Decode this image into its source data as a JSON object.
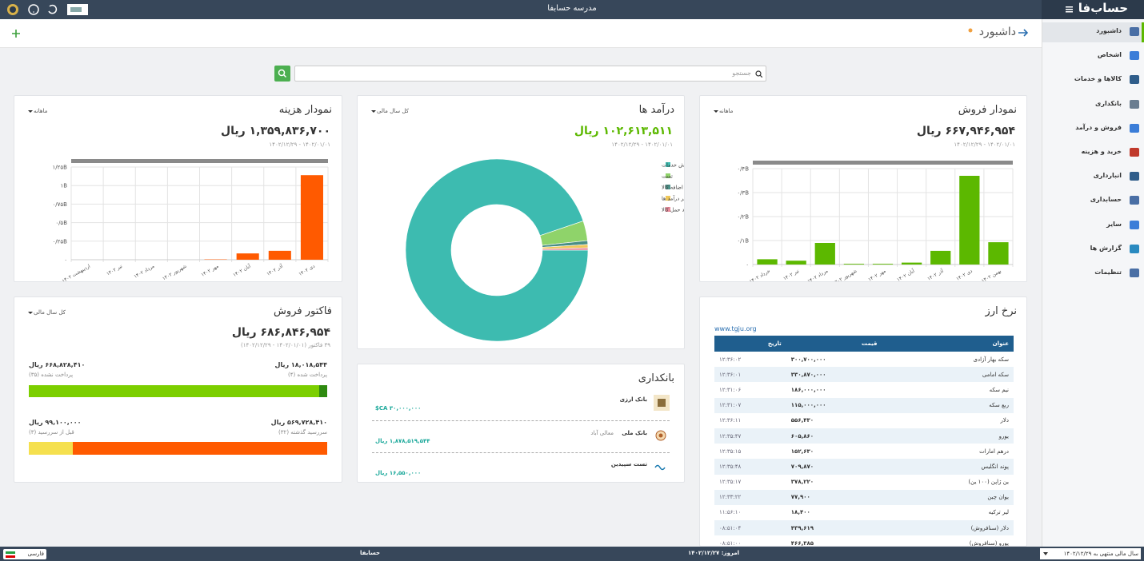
{
  "topbar": {
    "title": "مدرسه حسابفا",
    "logo": "حساب‌فا"
  },
  "sidebar": {
    "items": [
      "داشبورد",
      "اشخاص",
      "کالاها و خدمات",
      "بانکداری",
      "فروش و درآمد",
      "خرید و هزینه",
      "انبارداری",
      "حسابداری",
      "سایر",
      "گزارش ها",
      "تنظیمات"
    ]
  },
  "header": {
    "title": "داشبورد"
  },
  "search": {
    "placeholder": "جستجو"
  },
  "chart_data": [
    {
      "type": "bar",
      "title": "نمودار فروش",
      "period": "ماهانه",
      "amount": "۶۶۷,۹۴۶,۹۵۴ ریال",
      "date_range": "۱۴۰۲/۰۱/۰۱ - ۱۴۰۲/۱۲/۲۹",
      "color": "#5cb800",
      "categories": [
        "خرداد ۱۴۰۲",
        "تیر ۱۴۰۲",
        "مرداد ۱۴۰۲",
        "شهریور ۱۴۰۲",
        "مهر ۱۴۰۲",
        "آبان ۱۴۰۲",
        "آذر ۱۴۰۲",
        "دی ۱۴۰۲",
        "بهمن ۱۴۰۲"
      ],
      "values": [
        0.022,
        0.016,
        0.09,
        0.003,
        0.003,
        0.008,
        0.057,
        0.37,
        0.093
      ],
      "ylim": [
        0,
        0.4
      ],
      "yticks": [
        {
          "value": 0,
          "label": "۰"
        },
        {
          "value": 0.1,
          "label": "۰/۱B"
        },
        {
          "value": 0.2,
          "label": "۰/۲B"
        },
        {
          "value": 0.3,
          "label": "۰/۳B"
        },
        {
          "value": 0.4,
          "label": "۰/۴B"
        }
      ],
      "grid": true
    },
    {
      "type": "pie",
      "title": "درآمد ها",
      "period": "کل سال مالی",
      "amount": "۱۰۲,۶۱۳,۵۱۱ ریال",
      "date_range": "۱۴۰۲/۰۱/۰۱ - ۱۴۰۲/۱۲/۲۹",
      "categories": [
        "درآمد حاصل از فروش خدمات",
        "تست",
        "درآمد اضافه کالا",
        "سایر درآمد ها",
        "درآمد حمل کالا"
      ],
      "values": [
        97300000,
        3600000,
        700000,
        600000,
        413511
      ],
      "colors": [
        "#3dbbb0",
        "#8fd36a",
        "#4a8f86",
        "#f0c85a",
        "#e88a9a"
      ]
    },
    {
      "type": "bar",
      "title": "نمودار هزینه",
      "period": "ماهانه",
      "amount": "۱,۳۵۹,۸۳۶,۷۰۰ ریال",
      "date_range": "۱۴۰۲/۰۱/۰۱ - ۱۴۰۲/۱۲/۲۹",
      "color": "#ff5a00",
      "categories": [
        "اردیبهشت ۱۴۰۲",
        "تیر ۱۴۰۲",
        "مرداد ۱۴۰۲",
        "شهریور ۱۴۰۲",
        "مهر ۱۴۰۲",
        "آبان ۱۴۰۲",
        "آذر ۱۴۰۲",
        "دی ۱۴۰۲"
      ],
      "values": [
        0,
        0,
        0,
        0,
        0.005,
        0.085,
        0.12,
        1.14
      ],
      "ylim": [
        0,
        1.25
      ],
      "yticks": [
        {
          "value": 0,
          "label": "۰"
        },
        {
          "value": 0.25,
          "label": "۰/۲۵B"
        },
        {
          "value": 0.5,
          "label": "۰/۵B"
        },
        {
          "value": 0.75,
          "label": "۰/۷۵B"
        },
        {
          "value": 1,
          "label": "۱B"
        },
        {
          "value": 1.25,
          "label": "۱/۲۵B"
        }
      ],
      "grid": true
    }
  ],
  "invoice": {
    "title": "فاکتور فروش",
    "period": "کل سال مالی",
    "amount": "۶۸۶,۸۴۶,۹۵۴ ریال",
    "subtitle": "۳۹ فاکتور (۱۴۰۲/۰۱/۰۱ - ۱۴۰۲/۱۲/۲۹)",
    "paid": {
      "amount": "۱۸,۰۱۸,۵۴۴ ریال",
      "label": "پرداخت شده (۴)"
    },
    "unpaid": {
      "amount": "۶۶۸,۸۲۸,۴۱۰ ریال",
      "label": "پرداخت نشده (۳۵)"
    },
    "overdue": {
      "amount": "۵۶۹,۷۲۸,۴۱۰ ریال",
      "label": "سررسید گذشته (۳۲)"
    },
    "not_due": {
      "amount": "۹۹,۱۰۰,۰۰۰ ریال",
      "label": "قبل از سررسید (۳)"
    }
  },
  "banking": {
    "title": "بانکداری",
    "accounts": [
      {
        "name": "بانک ارزی",
        "balance": "$CA ۳۰,۰۰۰,۰۰۰"
      },
      {
        "name": "بانک ملی",
        "branch": "معالی آباد",
        "balance": "۱,۸۷۸,۵۱۹,۵۴۴ ریال"
      },
      {
        "name": "تست سپیدین",
        "balance": "۱۶,۵۵۰,۰۰۰ ریال"
      }
    ]
  },
  "currency": {
    "title": "نرخ ارز",
    "source": "www.tgju.org",
    "columns": [
      "عنوان",
      "قیمت",
      "تاریخ"
    ],
    "rows": [
      [
        "سکه بهار آزادی",
        "۳۰۰,۷۰۰,۰۰۰",
        "۱۲:۳۶:۰۲"
      ],
      [
        "سکه امامی",
        "۳۳۰,۸۷۰,۰۰۰",
        "۱۲:۳۶:۰۱"
      ],
      [
        "نیم سکه",
        "۱۸۶,۰۰۰,۰۰۰",
        "۱۲:۳۱:۰۶"
      ],
      [
        "ربع سکه",
        "۱۱۵,۰۰۰,۰۰۰",
        "۱۲:۳۱:۰۷"
      ],
      [
        "دلار",
        "۵۵۶,۴۳۰",
        "۱۲:۳۶:۱۱"
      ],
      [
        "یورو",
        "۶۰۵,۸۶۰",
        "۱۲:۳۵:۴۷"
      ],
      [
        "درهم امارات",
        "۱۵۲,۶۳۰",
        "۱۲:۳۵:۱۵"
      ],
      [
        "پوند انگلیس",
        "۷۰۹,۸۷۰",
        "۱۲:۳۵:۴۸"
      ],
      [
        "ین ژاپن (۱۰۰ ین)",
        "۳۷۸,۲۲۰",
        "۱۲:۳۵:۱۷"
      ],
      [
        "یوان چین",
        "۷۷,۹۰۰",
        "۱۲:۳۳:۲۲"
      ],
      [
        "لیر ترکیه",
        "۱۸,۴۰۰",
        "۱۱:۵۶:۱۰"
      ],
      [
        "دلار (سنافروش)",
        "۴۳۹,۶۱۹",
        "۰۸:۵۱:۰۴"
      ],
      [
        "یورو (سنافروش)",
        "۴۶۶,۳۸۵",
        "۰۸:۵۱:۰۰"
      ]
    ]
  },
  "footer": {
    "language": "فارسی",
    "app": "حسابفا",
    "today": "امروز: ۱۴۰۲/۱۲/۲۷",
    "fiscal_year": "سال مالی منتهی به ۱۴۰۲/۱۲/۲۹"
  }
}
